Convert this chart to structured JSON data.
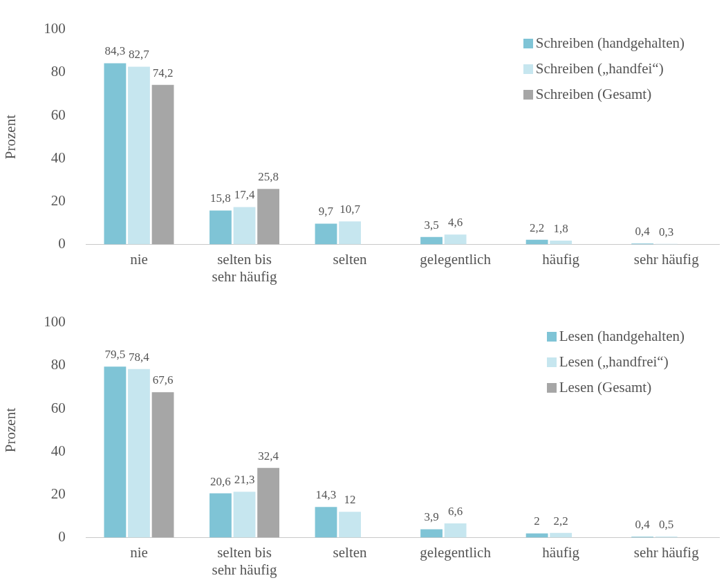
{
  "chart_data": [
    {
      "type": "bar",
      "ylabel": "Prozent",
      "categories": [
        "nie",
        "selten bis sehr häufig",
        "selten",
        "gelegentlich",
        "häufig",
        "sehr häufig"
      ],
      "ylim": [
        0,
        100
      ],
      "yticks": [
        0,
        20,
        40,
        60,
        80,
        100
      ],
      "grid": false,
      "legend": "top right",
      "series": [
        {
          "name": "Schreiben (handgehalten)",
          "color": "#7fc4d6",
          "values": [
            84.3,
            15.8,
            9.7,
            3.5,
            2.2,
            0.4
          ],
          "value_labels": [
            "84,3",
            "15,8",
            "9,7",
            "3,5",
            "2,2",
            "0,4"
          ]
        },
        {
          "name": "Schreiben („handfei“)",
          "color": "#c6e6ef",
          "values": [
            82.7,
            17.4,
            10.7,
            4.6,
            1.8,
            0.3
          ],
          "value_labels": [
            "82,7",
            "17,4",
            "10,7",
            "4,6",
            "1,8",
            "0,3"
          ]
        },
        {
          "name": "Schreiben (Gesamt)",
          "color": "#a6a6a6",
          "values": [
            74.2,
            25.8,
            null,
            null,
            null,
            null
          ],
          "value_labels": [
            "74,2",
            "25,8",
            null,
            null,
            null,
            null
          ]
        }
      ]
    },
    {
      "type": "bar",
      "ylabel": "Prozent",
      "categories": [
        "nie",
        "selten bis sehr häufig",
        "selten",
        "gelegentlich",
        "häufig",
        "sehr häufig"
      ],
      "ylim": [
        0,
        100
      ],
      "yticks": [
        0,
        20,
        40,
        60,
        80,
        100
      ],
      "grid": false,
      "legend": "top right",
      "series": [
        {
          "name": "Lesen (handgehalten)",
          "color": "#7fc4d6",
          "values": [
            79.5,
            20.6,
            14.3,
            3.9,
            2,
            0.4
          ],
          "value_labels": [
            "79,5",
            "20,6",
            "14,3",
            "3,9",
            "2",
            "0,4"
          ]
        },
        {
          "name": "Lesen („handfrei“)",
          "color": "#c6e6ef",
          "values": [
            78.4,
            21.3,
            12,
            6.6,
            2.2,
            0.5
          ],
          "value_labels": [
            "78,4",
            "21,3",
            "12",
            "6,6",
            "2,2",
            "0,5"
          ]
        },
        {
          "name": "Lesen (Gesamt)",
          "color": "#a6a6a6",
          "values": [
            67.6,
            32.4,
            null,
            null,
            null,
            null
          ],
          "value_labels": [
            "67,6",
            "32,4",
            null,
            null,
            null,
            null
          ]
        }
      ]
    }
  ]
}
